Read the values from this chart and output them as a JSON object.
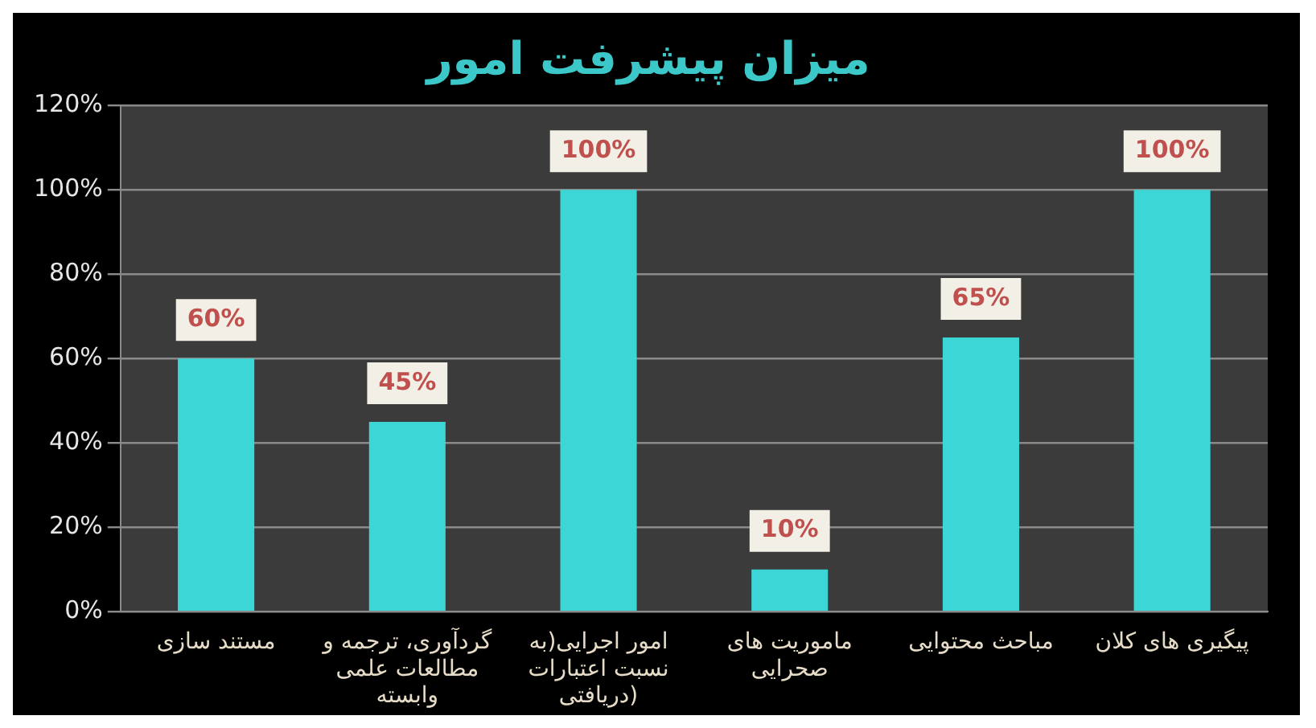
{
  "chart_data": {
    "type": "bar",
    "title": "میزان پیشرفت امور",
    "categories": [
      "مستند سازی",
      "گردآوری، ترجمه و مطالعات علمی وابسته",
      "امور اجرایی(به نسبت اعتبارات دریافتی)",
      "ماموریت های صحرایی",
      "مباحث محتوایی",
      "پیگیری های کلان"
    ],
    "values": [
      60,
      45,
      100,
      10,
      65,
      100
    ],
    "value_labels": [
      "60%",
      "45%",
      "100%",
      "10%",
      "65%",
      "100%"
    ],
    "color": "#3cd6d6",
    "ylim": [
      0,
      120
    ],
    "yticks": [
      {
        "value": 0,
        "label": "0%"
      },
      {
        "value": 20,
        "label": "20%"
      },
      {
        "value": 40,
        "label": "40%"
      },
      {
        "value": 60,
        "label": "60%"
      },
      {
        "value": 80,
        "label": "80%"
      },
      {
        "value": 100,
        "label": "100%"
      },
      {
        "value": 120,
        "label": "120%"
      }
    ],
    "grid": "y",
    "legend": false
  }
}
